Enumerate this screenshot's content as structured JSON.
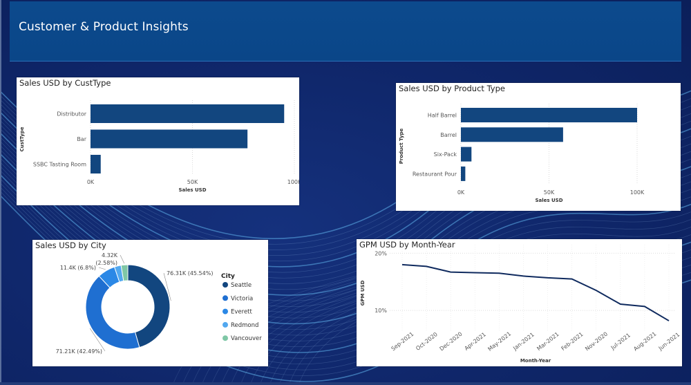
{
  "header": {
    "title": "Customer & Product Insights"
  },
  "colors": {
    "bar": "#12467f",
    "line": "#0f2a5e",
    "donut": [
      "#12467f",
      "#1f6fd1",
      "#2b88e6",
      "#52a8ef",
      "#7fc7a6"
    ]
  },
  "chart_data": [
    {
      "id": "custtype",
      "type": "bar",
      "orientation": "horizontal",
      "title": "Sales USD by CustType",
      "xlabel": "Sales USD",
      "ylabel": "CustType",
      "categories": [
        "Distributor",
        "Bar",
        "SSBC Tasting Room"
      ],
      "values": [
        95000,
        77000,
        5000
      ],
      "xlim": [
        0,
        100000
      ],
      "ticks": [
        0,
        50000,
        100000
      ],
      "tick_labels": [
        "0K",
        "50K",
        "100K"
      ],
      "grid": true
    },
    {
      "id": "producttype",
      "type": "bar",
      "orientation": "horizontal",
      "title": "Sales USD by Product Type",
      "xlabel": "Sales USD",
      "ylabel": "Product Type",
      "categories": [
        "Half Barrel",
        "Barrel",
        "Six-Pack",
        "Restaurant Pour"
      ],
      "values": [
        100000,
        58000,
        6000,
        2500
      ],
      "xlim": [
        0,
        100000
      ],
      "ticks": [
        0,
        50000,
        100000
      ],
      "tick_labels": [
        "0K",
        "50K",
        "100K"
      ],
      "grid": true
    },
    {
      "id": "city",
      "type": "pie",
      "donut": true,
      "title": "Sales USD by City",
      "legend_title": "City",
      "legend_position": "right",
      "labels": [
        "Seattle",
        "Victoria",
        "Everett",
        "Redmond",
        "Vancouver"
      ],
      "values": [
        76.31,
        71.21,
        11.4,
        4.32,
        4.32
      ],
      "data_labels": [
        {
          "index": 0,
          "text": "76.31K (45.54%)"
        },
        {
          "index": 1,
          "text": "71.21K (42.49%)"
        },
        {
          "index": 2,
          "text": "11.4K (6.8%)"
        },
        {
          "index": 4,
          "text": "4.32K",
          "text2": "(2.58%)"
        }
      ]
    },
    {
      "id": "gpm",
      "type": "line",
      "title": "GPM USD by Month-Year",
      "xlabel": "Month-Year",
      "ylabel": "GPM USD",
      "x": [
        "Sep-2021",
        "Oct-2020",
        "Dec-2020",
        "Apr-2021",
        "May-2021",
        "Jan-2021",
        "Mar-2021",
        "Feb-2021",
        "Nov-2020",
        "Jul-2021",
        "Aug-2021",
        "Jun-2021"
      ],
      "values": [
        18.0,
        17.7,
        16.7,
        16.6,
        16.5,
        16.0,
        15.7,
        15.5,
        13.5,
        11.1,
        10.7,
        8.2
      ],
      "ylim": [
        7,
        21
      ],
      "ticks": [
        10,
        20
      ],
      "tick_labels": [
        "10%",
        "20%"
      ],
      "grid": true
    }
  ]
}
